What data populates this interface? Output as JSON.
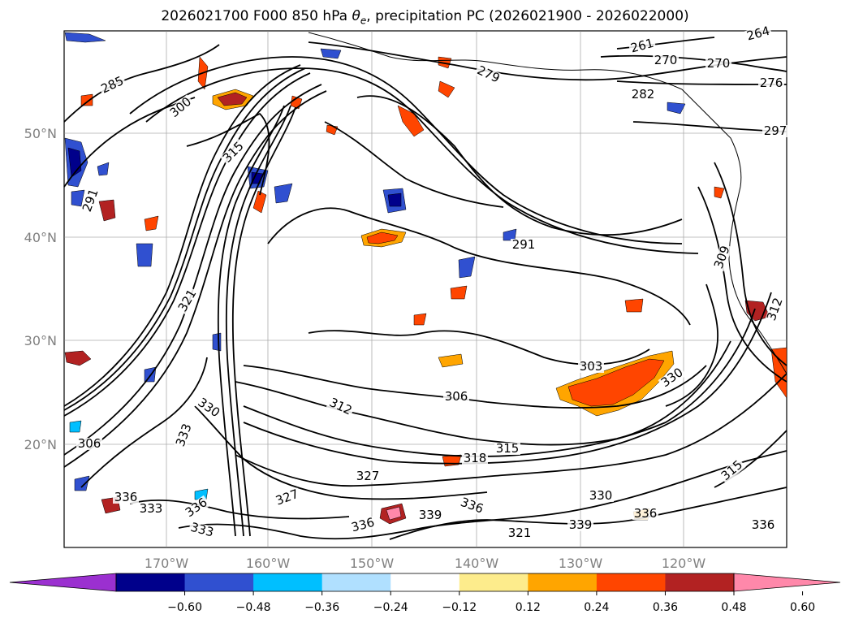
{
  "title": {
    "prefix": "2026021700 F000 850 hPa ",
    "theta": "θ",
    "theta_sub": "e",
    "suffix": ", precipitation PC (2026021900 - 2026022000)"
  },
  "map": {
    "lat_labels": [
      "50°N",
      "40°N",
      "30°N",
      "20°N"
    ],
    "lon_labels": [
      "170°W",
      "160°W",
      "150°W",
      "140°W",
      "130°W",
      "120°W"
    ],
    "contour_labels": [
      "285",
      "279",
      "261",
      "270",
      "276",
      "264",
      "282",
      "297",
      "291",
      "309",
      "312",
      "303",
      "306",
      "312",
      "315",
      "318",
      "327",
      "330",
      "333",
      "336",
      "336",
      "336",
      "339",
      "339",
      "336",
      "315",
      "315",
      "300",
      "291",
      "321",
      "327",
      "333",
      "336",
      "333",
      "336",
      "321",
      "330",
      "330",
      "306",
      "270"
    ],
    "label_color": "#808080",
    "contour_color": "#000000"
  },
  "colorbar": {
    "tick_labels": [
      "−0.60",
      "−0.48",
      "−0.36",
      "−0.24",
      "−0.12",
      "0.12",
      "0.24",
      "0.36",
      "0.48",
      "0.60"
    ],
    "colors": [
      "#9b30d0",
      "#00008b",
      "#3050d0",
      "#00bfff",
      "#b0e0ff",
      "#ffffff",
      "#fdec8c",
      "#ffa500",
      "#ff4500",
      "#b22222",
      "#ff88aa"
    ]
  }
}
